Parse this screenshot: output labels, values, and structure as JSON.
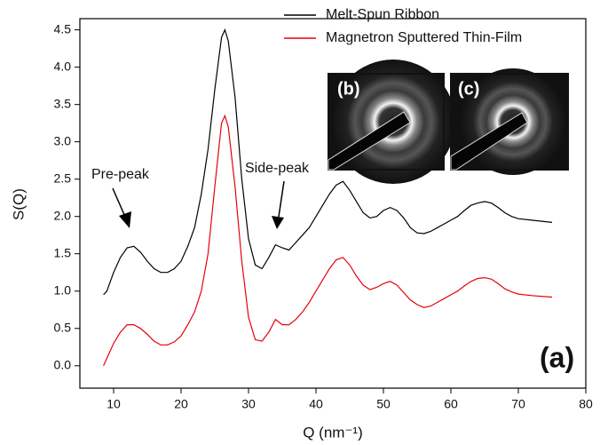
{
  "chart_data": {
    "type": "line",
    "x_label": "Q (nm⁻¹)",
    "y_label": "S(Q)",
    "x": [
      8.5,
      9,
      10,
      11,
      12,
      13,
      14,
      15,
      16,
      17,
      18,
      19,
      20,
      21,
      22,
      23,
      24,
      25,
      26,
      26.5,
      27,
      28,
      29,
      30,
      31,
      32,
      33,
      34,
      35,
      36,
      37,
      38,
      39,
      40,
      41,
      42,
      43,
      44,
      45,
      46,
      47,
      48,
      49,
      50,
      51,
      52,
      53,
      54,
      55,
      56,
      57,
      58,
      59,
      60,
      61,
      62,
      63,
      64,
      65,
      66,
      67,
      68,
      69,
      70,
      72,
      75
    ],
    "series": [
      {
        "name": "Melt-Spun Ribbon",
        "color": "#000000",
        "values": [
          0.95,
          1.0,
          1.25,
          1.45,
          1.58,
          1.6,
          1.52,
          1.4,
          1.3,
          1.25,
          1.25,
          1.3,
          1.4,
          1.6,
          1.85,
          2.3,
          2.9,
          3.7,
          4.4,
          4.5,
          4.35,
          3.6,
          2.5,
          1.7,
          1.35,
          1.3,
          1.45,
          1.62,
          1.58,
          1.55,
          1.65,
          1.75,
          1.85,
          2.0,
          2.15,
          2.3,
          2.42,
          2.47,
          2.35,
          2.2,
          2.05,
          1.98,
          2.0,
          2.08,
          2.12,
          2.08,
          1.98,
          1.85,
          1.78,
          1.77,
          1.8,
          1.85,
          1.9,
          1.95,
          2.0,
          2.08,
          2.15,
          2.18,
          2.2,
          2.18,
          2.12,
          2.05,
          2.0,
          1.97,
          1.95,
          1.92
        ]
      },
      {
        "name": "Magnetron Sputtered Thin-Film",
        "color": "#e8000b",
        "values": [
          0.0,
          0.1,
          0.3,
          0.45,
          0.55,
          0.55,
          0.5,
          0.42,
          0.33,
          0.28,
          0.28,
          0.32,
          0.4,
          0.55,
          0.72,
          1.0,
          1.5,
          2.4,
          3.25,
          3.35,
          3.2,
          2.4,
          1.4,
          0.65,
          0.35,
          0.33,
          0.45,
          0.62,
          0.55,
          0.55,
          0.62,
          0.72,
          0.85,
          1.0,
          1.15,
          1.3,
          1.42,
          1.45,
          1.35,
          1.2,
          1.08,
          1.02,
          1.05,
          1.1,
          1.13,
          1.08,
          0.98,
          0.88,
          0.82,
          0.78,
          0.8,
          0.85,
          0.9,
          0.95,
          1.0,
          1.07,
          1.13,
          1.17,
          1.18,
          1.16,
          1.1,
          1.03,
          0.99,
          0.96,
          0.94,
          0.92
        ]
      }
    ],
    "xlim": [
      5,
      80
    ],
    "xticks": [
      10,
      20,
      30,
      40,
      50,
      60,
      70,
      80
    ],
    "ylim": [
      -0.3,
      4.65
    ],
    "yticks": [
      {
        "value": 0,
        "label": "0.0"
      },
      0.5,
      {
        "value": 1,
        "label": "1.0"
      },
      1.5,
      {
        "value": 2,
        "label": "2.0"
      },
      2.5,
      {
        "value": 3,
        "label": "3.0"
      },
      3.5,
      {
        "value": 4,
        "label": "4.0"
      },
      4.5
    ],
    "legend": "upper right",
    "annotations": [
      "Pre-peak",
      "Side-peak",
      "(a)",
      "(b)",
      "(c)"
    ]
  }
}
